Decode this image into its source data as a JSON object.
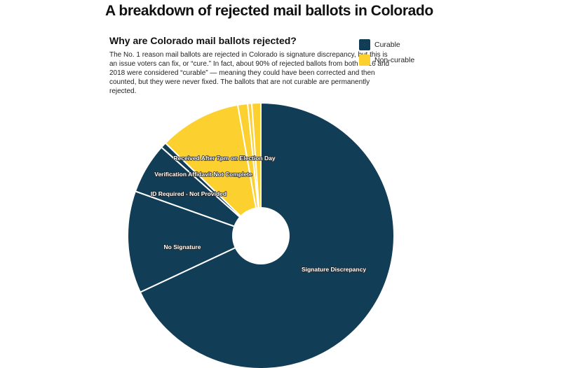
{
  "header": {
    "title": "A breakdown of rejected mail ballots in Colorado",
    "subtitle": "Why are Colorado mail ballots rejected?",
    "description": "The No. 1 reason mail ballots are rejected in Colorado is signature discrepancy, but this is an issue voters can fix, or “cure.” In fact, about 90% of rejected ballots from both 2016 and 2018 were considered “curable” — meaning they could have been corrected and then counted, but they were never fixed. The ballots that are not curable are permanently rejected."
  },
  "legend": {
    "items": [
      {
        "label": "Curable",
        "color": "#123d56"
      },
      {
        "label": "Non-curable",
        "color": "#fbd02f"
      }
    ]
  },
  "colors": {
    "curable": "#123d56",
    "non_curable": "#fbd02f",
    "divider": "#ffffff"
  },
  "chart_data": {
    "type": "pie",
    "donut": true,
    "start": "12 o'clock, clockwise",
    "unit": "% of rejected ballots (estimated)",
    "slices": [
      {
        "label": "Signature Discrepancy",
        "value": 68.5,
        "category": "curable",
        "show_label": true
      },
      {
        "label": "No Signature",
        "value": 12.5,
        "category": "curable",
        "show_label": true
      },
      {
        "label": "ID Required - Not Provided",
        "value": 6.2,
        "category": "curable",
        "show_label": true
      },
      {
        "label": "Verification Affidavit Not Complete",
        "value": 0.7,
        "category": "curable",
        "show_label": true
      },
      {
        "label": "Received After 7pm on Election Day",
        "value": 10.0,
        "category": "non_curable",
        "show_label": true
      },
      {
        "label": "",
        "value": 1.2,
        "category": "non_curable",
        "show_label": false
      },
      {
        "label": "",
        "value": 0.5,
        "category": "non_curable",
        "show_label": false
      },
      {
        "label": "",
        "value": 1.1,
        "category": "non_curable",
        "show_label": false
      }
    ]
  }
}
